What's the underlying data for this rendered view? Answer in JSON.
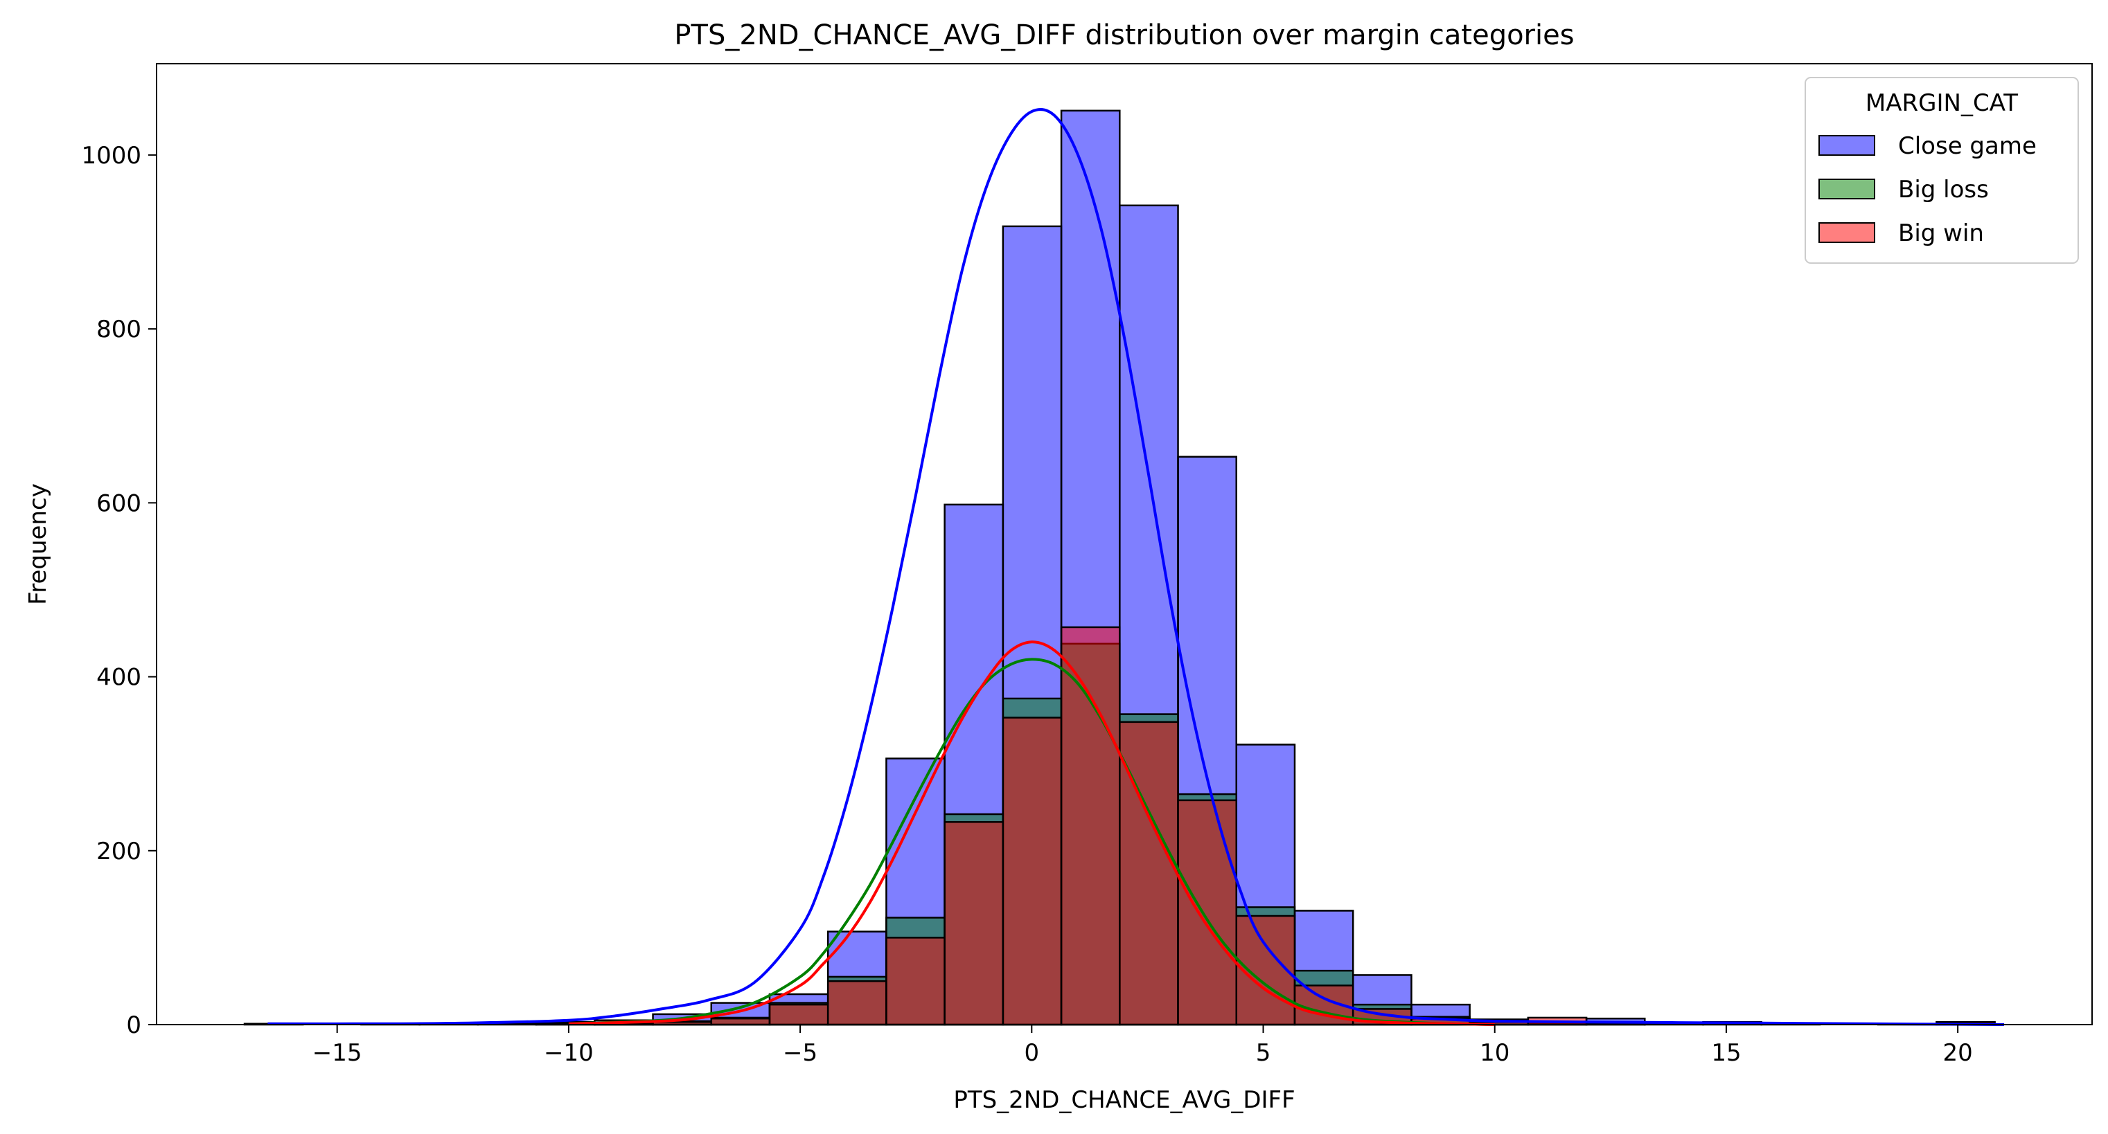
{
  "chart_data": {
    "type": "bar",
    "title": "PTS_2ND_CHANCE_AVG_DIFF distribution over margin categories",
    "xlabel": "PTS_2ND_CHANCE_AVG_DIFF",
    "ylabel": "Frequency",
    "xlim": [
      -18.9,
      22.9
    ],
    "ylim": [
      0,
      1105
    ],
    "xticks": [
      -15,
      -10,
      -5,
      0,
      5,
      10,
      15,
      20
    ],
    "xtick_labels": [
      "−15",
      "−10",
      "−5",
      "0",
      "5",
      "10",
      "15",
      "20"
    ],
    "yticks": [
      0,
      200,
      400,
      600,
      800,
      1000
    ],
    "ytick_labels": [
      "0",
      "200",
      "400",
      "600",
      "800",
      "1000"
    ],
    "bin_start": -17.0,
    "bin_width": 1.26,
    "legend": {
      "title": "MARGIN_CAT",
      "position": "top-right",
      "entries": [
        "Close game",
        "Big loss",
        "Big win"
      ]
    },
    "series": [
      {
        "name": "Close game",
        "color": "#0000ff",
        "values": [
          1,
          0,
          1,
          1,
          2,
          3,
          5,
          12,
          25,
          35,
          107,
          306,
          598,
          918,
          1051,
          942,
          653,
          322,
          131,
          57,
          23,
          6,
          3,
          7,
          2,
          3,
          1,
          0,
          1,
          1
        ]
      },
      {
        "name": "Big loss",
        "color": "#008000",
        "values": [
          0,
          0,
          0,
          0,
          0,
          1,
          2,
          4,
          8,
          25,
          55,
          123,
          242,
          375,
          438,
          357,
          265,
          135,
          62,
          23,
          9,
          3,
          1,
          1,
          0,
          0,
          0,
          0,
          0,
          0
        ]
      },
      {
        "name": "Big win",
        "color": "#ff0000",
        "values": [
          0,
          0,
          0,
          0,
          0,
          0,
          1,
          3,
          7,
          23,
          50,
          100,
          233,
          353,
          457,
          348,
          258,
          125,
          45,
          18,
          7,
          3,
          8,
          0,
          0,
          0,
          0,
          0,
          0,
          3
        ]
      }
    ],
    "kde": [
      {
        "name": "Close game",
        "color": "#0000ff",
        "x": [
          -16.5,
          -14,
          -12,
          -10,
          -9,
          -8,
          -7,
          -6,
          -5,
          -4.5,
          -4,
          -3.5,
          -3,
          -2.5,
          -2,
          -1.5,
          -1,
          -0.5,
          0,
          0.5,
          1,
          1.5,
          2,
          2.5,
          3,
          3.5,
          4,
          4.5,
          5,
          6,
          7,
          8,
          9,
          10,
          12,
          15,
          18,
          21
        ],
        "y": [
          1,
          1,
          2,
          5,
          10,
          18,
          28,
          48,
          110,
          170,
          255,
          360,
          480,
          610,
          745,
          868,
          960,
          1020,
          1050,
          1045,
          1000,
          915,
          790,
          640,
          485,
          350,
          240,
          155,
          95,
          40,
          18,
          9,
          6,
          4,
          3,
          2,
          1,
          0
        ]
      },
      {
        "name": "Big loss",
        "color": "#008000",
        "x": [
          -10,
          -8,
          -7,
          -6,
          -5,
          -4.5,
          -4,
          -3.5,
          -3,
          -2.5,
          -2,
          -1.5,
          -1,
          -0.5,
          0,
          0.5,
          1,
          1.5,
          2,
          2.5,
          3,
          3.5,
          4,
          4.5,
          5,
          5.5,
          6,
          7,
          8,
          9,
          10
        ],
        "y": [
          1,
          5,
          12,
          25,
          55,
          82,
          118,
          160,
          210,
          262,
          312,
          358,
          393,
          413,
          420,
          414,
          392,
          352,
          302,
          248,
          195,
          146,
          104,
          72,
          48,
          30,
          18,
          7,
          3,
          1,
          0
        ]
      },
      {
        "name": "Big win",
        "color": "#ff0000",
        "x": [
          -10,
          -8,
          -7,
          -6,
          -5,
          -4.5,
          -4,
          -3.5,
          -3,
          -2.5,
          -2,
          -1.5,
          -1,
          -0.5,
          0,
          0.5,
          1,
          1.5,
          2,
          2.5,
          3,
          3.5,
          4,
          4.5,
          5,
          5.5,
          6,
          7,
          8,
          9,
          10
        ],
        "y": [
          1,
          4,
          9,
          20,
          45,
          70,
          100,
          140,
          190,
          245,
          300,
          352,
          395,
          428,
          440,
          430,
          400,
          355,
          300,
          242,
          188,
          138,
          98,
          66,
          42,
          26,
          15,
          5,
          2,
          1,
          0
        ]
      }
    ]
  }
}
